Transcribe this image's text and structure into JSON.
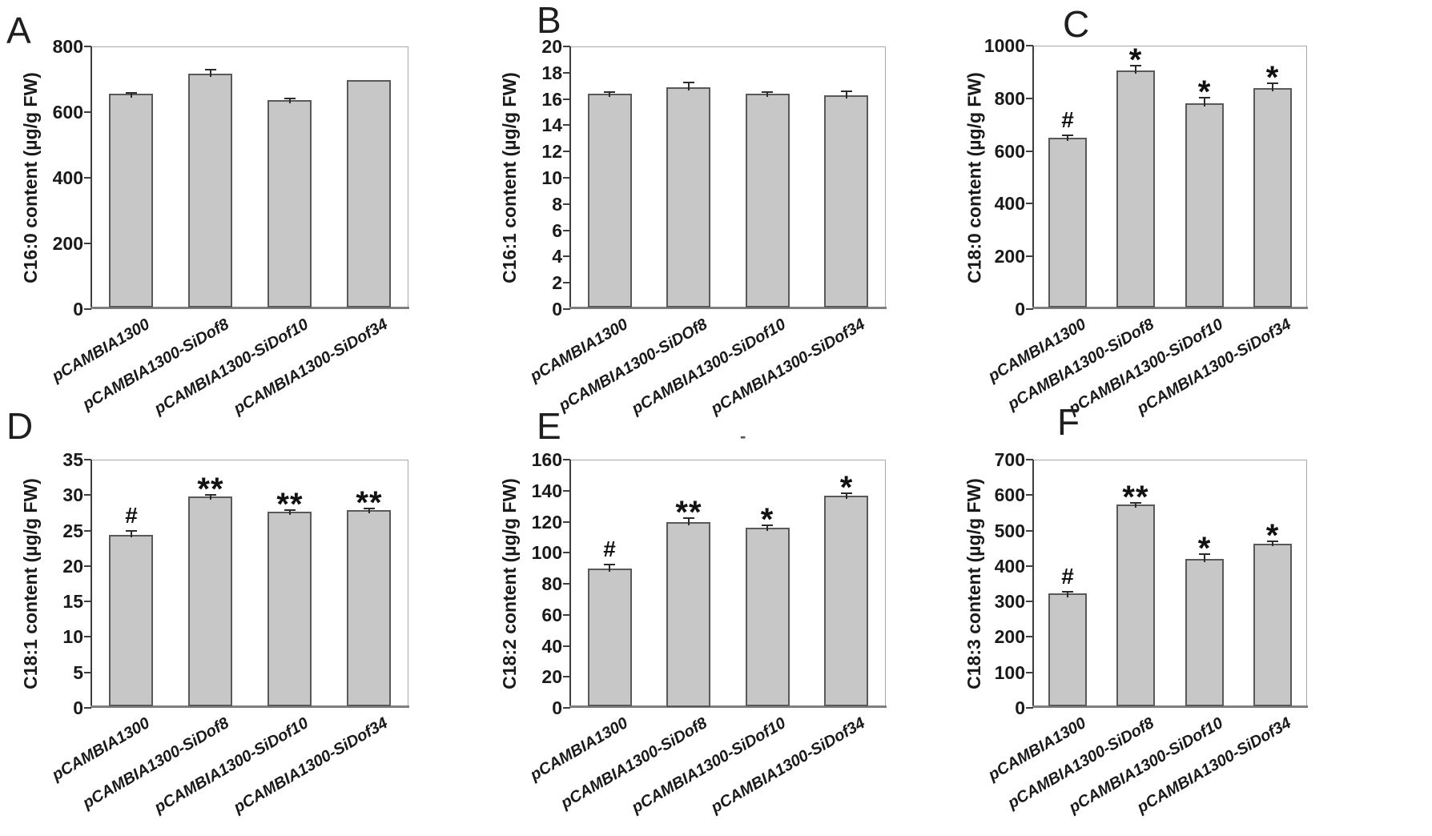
{
  "stray_mark": "-",
  "style": {
    "bar_fill": "#c7c7c7",
    "bar_border": "#595959",
    "axis_color": "#3f3f3f",
    "baseline_color": "#7f7f7f",
    "frame_color": "#a8a8a8",
    "text_color": "#1a1a1a"
  },
  "chart_data": [
    {
      "panel": "A",
      "type": "bar",
      "ylabel": "C16:0 content (µg/g FW)",
      "xlabel": "",
      "ylim": [
        0,
        800
      ],
      "ytick_step": 200,
      "yticks": [
        "0",
        "200",
        "400",
        "600",
        "800"
      ],
      "categories": [
        "pCAMBIA1300",
        "pCAMBIA1300-SiDof8",
        "pCAMBIA1300-SiDof10",
        "pCAMBIA1300-SiDof34"
      ],
      "values": [
        655,
        717,
        636,
        698
      ],
      "errors": [
        4,
        12,
        5,
        0
      ],
      "significance": [
        "",
        "",
        "",
        ""
      ],
      "grid": false,
      "legend": false
    },
    {
      "panel": "B",
      "type": "bar",
      "ylabel": "C16:1 content (µg/g FW)",
      "xlabel": "",
      "ylim": [
        0,
        20
      ],
      "ytick_step": 2,
      "yticks": [
        "0",
        "2",
        "4",
        "6",
        "8",
        "10",
        "12",
        "14",
        "16",
        "18",
        "20"
      ],
      "categories": [
        "pCAMBIA1300",
        "pCAMBIA1300-SiDOf8",
        "pCAMBIA1300-SiDof10",
        "pCAMBIA1300-SiDof34"
      ],
      "values": [
        16.4,
        16.9,
        16.4,
        16.3
      ],
      "errors": [
        0.15,
        0.35,
        0.15,
        0.3
      ],
      "significance": [
        "",
        "",
        "",
        ""
      ],
      "grid": false,
      "legend": false
    },
    {
      "panel": "C",
      "type": "bar",
      "ylabel": "C18:0 content (µg/g FW)",
      "xlabel": "",
      "ylim": [
        0,
        1000
      ],
      "ytick_step": 200,
      "yticks": [
        "0",
        "200",
        "400",
        "600",
        "800",
        "1000"
      ],
      "categories": [
        "pCAMBIA1300",
        "pCAMBIA1300-SiDof8",
        "pCAMBIA1300-SiDof10",
        "pCAMBIA1300-SiDof34"
      ],
      "values": [
        650,
        905,
        782,
        840
      ],
      "errors": [
        10,
        18,
        20,
        18
      ],
      "significance": [
        "#",
        "*",
        "*",
        "*"
      ],
      "grid": false,
      "legend": false
    },
    {
      "panel": "D",
      "type": "bar",
      "ylabel": "C18:1 content (µg/g FW)",
      "xlabel": "",
      "ylim": [
        0,
        35
      ],
      "ytick_step": 5,
      "yticks": [
        "0",
        "5",
        "10",
        "15",
        "20",
        "25",
        "30",
        "35"
      ],
      "categories": [
        "pCAMBIA1300",
        "pCAMBIA1300-SiDof8",
        "pCAMBIA1300-SiDof10",
        "pCAMBIA1300-SiDof34"
      ],
      "values": [
        24.4,
        29.8,
        27.7,
        27.9
      ],
      "errors": [
        0.5,
        0.25,
        0.2,
        0.2
      ],
      "significance": [
        "#",
        "**",
        "**",
        "**"
      ],
      "grid": false,
      "legend": false
    },
    {
      "panel": "E",
      "type": "bar",
      "ylabel": "C18:2 content (µg/g FW)",
      "xlabel": "",
      "ylim": [
        0,
        160
      ],
      "ytick_step": 20,
      "yticks": [
        "0",
        "20",
        "40",
        "60",
        "80",
        "100",
        "120",
        "140",
        "160"
      ],
      "categories": [
        "pCAMBIA1300",
        "pCAMBIA1300-SiDof8",
        "pCAMBIA1300-SiDof10",
        "pCAMBIA1300-SiDof34"
      ],
      "values": [
        90,
        120,
        116,
        137
      ],
      "errors": [
        2.5,
        2.5,
        1.5,
        1.5
      ],
      "significance": [
        "#",
        "**",
        "*",
        "*"
      ],
      "grid": false,
      "legend": false
    },
    {
      "panel": "F",
      "type": "bar",
      "ylabel": "C18:3 content (µg/g FW)",
      "xlabel": "",
      "ylim": [
        0,
        700
      ],
      "ytick_step": 100,
      "yticks": [
        "0",
        "100",
        "200",
        "300",
        "400",
        "500",
        "600",
        "700"
      ],
      "categories": [
        "pCAMBIA1300",
        "pCAMBIA1300-SiDof8",
        "pCAMBIA1300-SiDof10",
        "pCAMBIA1300-SiDof34"
      ],
      "values": [
        322,
        573,
        421,
        464
      ],
      "errors": [
        6,
        5,
        13,
        5
      ],
      "significance": [
        "#",
        "**",
        "*",
        "*"
      ],
      "grid": false,
      "legend": false
    }
  ]
}
